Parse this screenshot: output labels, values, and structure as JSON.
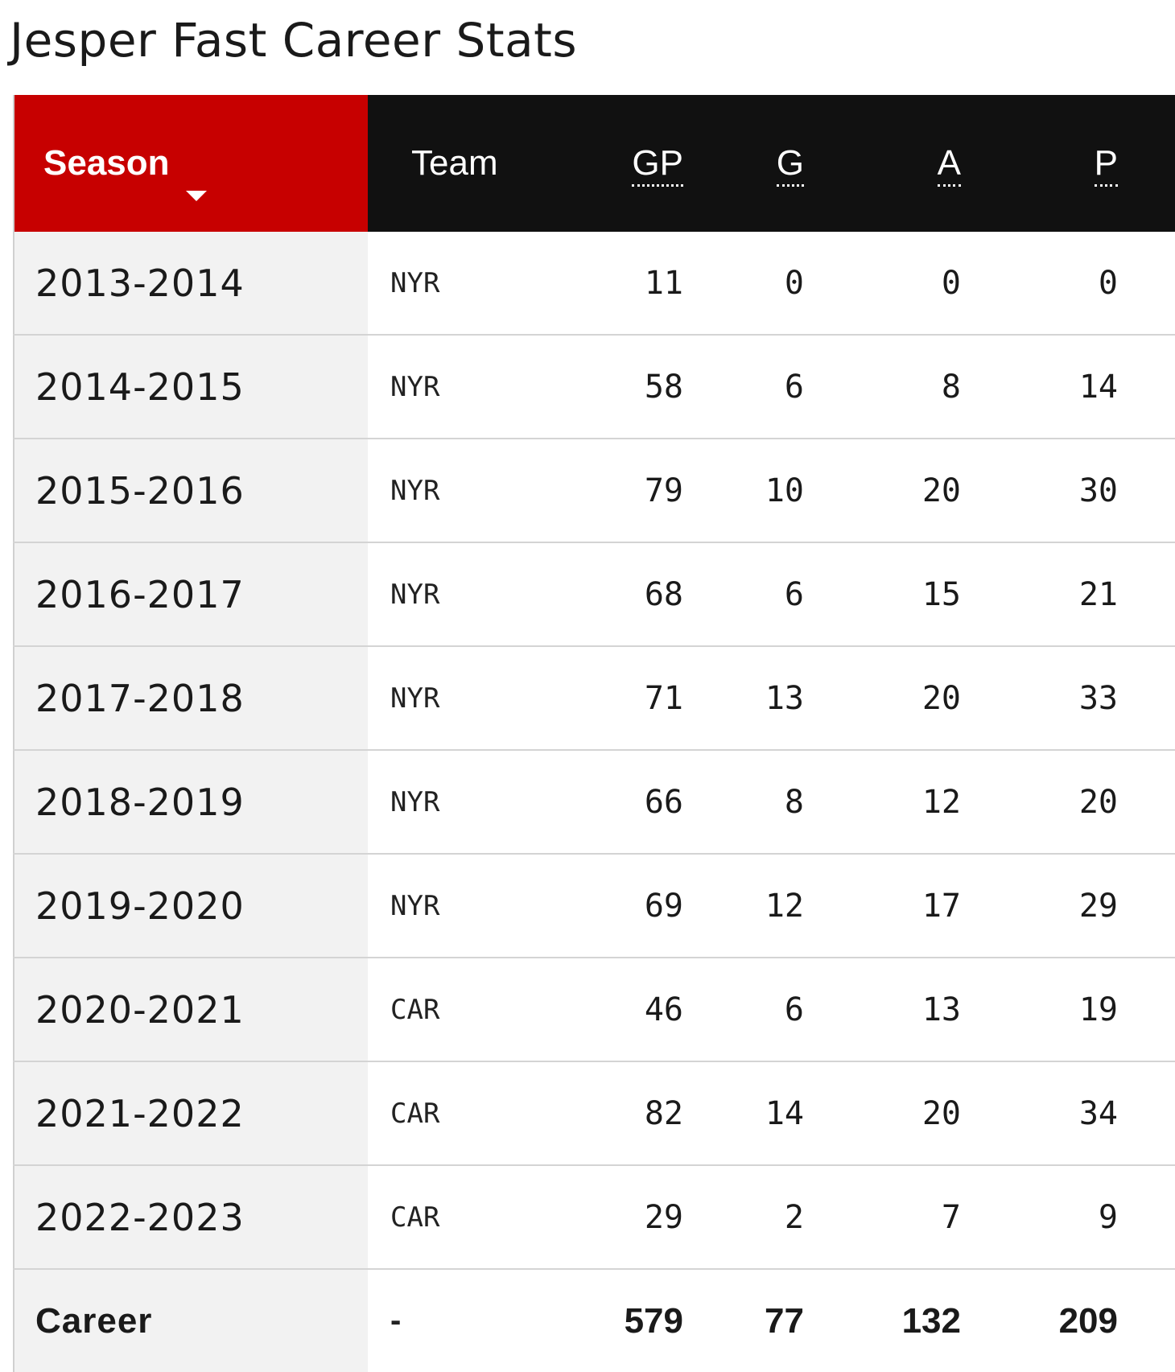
{
  "title": "Jesper Fast Career Stats",
  "table": {
    "headers": {
      "season": "Season",
      "team": "Team",
      "gp": "GP",
      "g": "G",
      "a": "A",
      "p": "P"
    },
    "rows": [
      {
        "season": "2013-2014",
        "team": "NYR",
        "gp": "11",
        "g": "0",
        "a": "0",
        "p": "0"
      },
      {
        "season": "2014-2015",
        "team": "NYR",
        "gp": "58",
        "g": "6",
        "a": "8",
        "p": "14"
      },
      {
        "season": "2015-2016",
        "team": "NYR",
        "gp": "79",
        "g": "10",
        "a": "20",
        "p": "30"
      },
      {
        "season": "2016-2017",
        "team": "NYR",
        "gp": "68",
        "g": "6",
        "a": "15",
        "p": "21"
      },
      {
        "season": "2017-2018",
        "team": "NYR",
        "gp": "71",
        "g": "13",
        "a": "20",
        "p": "33"
      },
      {
        "season": "2018-2019",
        "team": "NYR",
        "gp": "66",
        "g": "8",
        "a": "12",
        "p": "20"
      },
      {
        "season": "2019-2020",
        "team": "NYR",
        "gp": "69",
        "g": "12",
        "a": "17",
        "p": "29"
      },
      {
        "season": "2020-2021",
        "team": "CAR",
        "gp": "46",
        "g": "6",
        "a": "13",
        "p": "19"
      },
      {
        "season": "2021-2022",
        "team": "CAR",
        "gp": "82",
        "g": "14",
        "a": "20",
        "p": "34"
      },
      {
        "season": "2022-2023",
        "team": "CAR",
        "gp": "29",
        "g": "2",
        "a": "7",
        "p": "9"
      }
    ],
    "career": {
      "season": "Career",
      "team": "-",
      "gp": "579",
      "g": "77",
      "a": "132",
      "p": "209"
    }
  },
  "colors": {
    "season_header_bg": "#c70000",
    "header_bg": "#111111",
    "season_column_bg": "#f2f2f2"
  },
  "icons": {
    "sort": "caret-down-icon"
  }
}
